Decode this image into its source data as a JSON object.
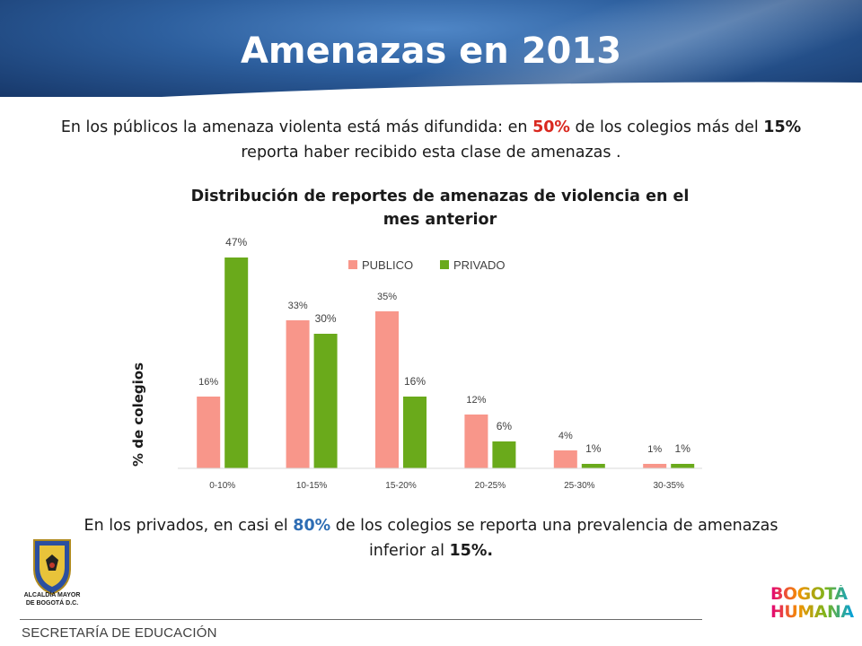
{
  "slide": {
    "title": "Amenazas en 2013"
  },
  "intro": {
    "part1": "En los públicos la amenaza violenta está más difundida: en ",
    "highlight1": "50%",
    "part2": " de los colegios más del ",
    "highlight2": "15%",
    "part3": " reporta haber recibido esta clase de amenazas ."
  },
  "conclusion": {
    "part1": "En los privados, en casi el ",
    "highlight1": "80%",
    "part2": " de los colegios se reporta  una prevalencia de amenazas inferior al ",
    "highlight2": "15%.",
    "part3": ""
  },
  "colors": {
    "publico": "#f8968a",
    "privado": "#6aaa1b",
    "header_dark": "#17386a",
    "header_light": "#4f86c6",
    "highlight_red": "#d9281f",
    "highlight_blue": "#2e6db4"
  },
  "chart_data": {
    "type": "bar",
    "title": "Distribución de reportes de amenazas de violencia en el mes anterior",
    "xlabel": "",
    "ylabel": "% de colegios",
    "categories": [
      "0-10%",
      "10-15%",
      "15-20%",
      "20-25%",
      "25-30%",
      "30-35%"
    ],
    "series": [
      {
        "name": "PUBLICO",
        "values": [
          16,
          33,
          35,
          12,
          4,
          1
        ],
        "labels": [
          "16%",
          "33%",
          "35%",
          "12%",
          "4%",
          "1%"
        ]
      },
      {
        "name": "PRIVADO",
        "values": [
          47,
          30,
          16,
          6,
          1,
          1
        ],
        "labels": [
          "47%",
          "30%",
          "16%",
          "6%",
          "1%",
          "1%"
        ]
      }
    ],
    "ylim": [
      0,
      47
    ],
    "grid": false,
    "legend": "top-center"
  },
  "footer": {
    "department": "SECRETARÍA DE EDUCACIÓN",
    "left_logo_line1": "ALCALDÍA MAYOR",
    "left_logo_line2": "DE BOGOTÁ D.C.",
    "right_logo_line1": "BOGOTÁ",
    "right_logo_line2": "HUMANA"
  }
}
